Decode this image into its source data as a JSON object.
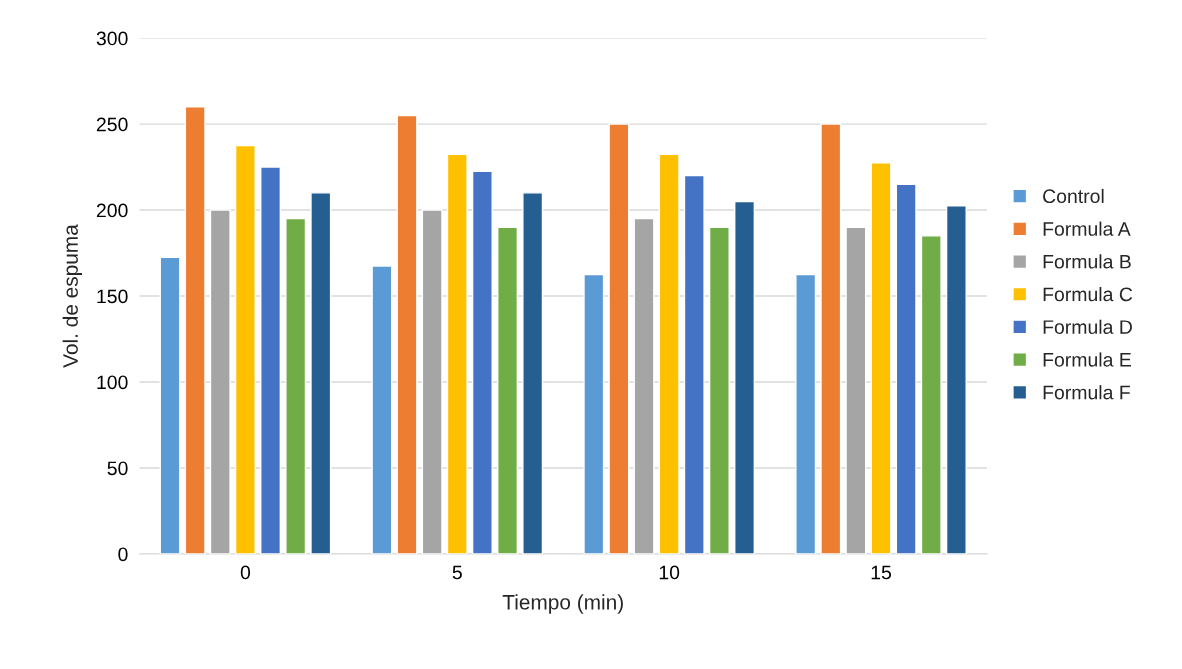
{
  "chart_data": {
    "type": "bar",
    "xlabel": "Tiempo (min)",
    "ylabel": "Vol. de espuma",
    "categories": [
      "0",
      "5",
      "10",
      "15"
    ],
    "series": [
      {
        "name": "Control",
        "color": "#5b9bd5",
        "values": [
          172.5,
          167.5,
          162.5,
          162.5
        ]
      },
      {
        "name": "Formula A",
        "color": "#ed7d31",
        "values": [
          260,
          255,
          250,
          250
        ]
      },
      {
        "name": "Formula B",
        "color": "#a5a5a5",
        "values": [
          200,
          200,
          195,
          190
        ]
      },
      {
        "name": "Formula C",
        "color": "#ffc000",
        "values": [
          237.5,
          232.5,
          232.5,
          227.5
        ]
      },
      {
        "name": "Formula D",
        "color": "#4472c4",
        "values": [
          225,
          222.5,
          220,
          215
        ]
      },
      {
        "name": "Formula E",
        "color": "#70ad47",
        "values": [
          195,
          190,
          190,
          185
        ]
      },
      {
        "name": "Formula F",
        "color": "#255e91",
        "values": [
          210,
          210,
          205,
          202.5
        ]
      }
    ],
    "ylim": [
      0,
      300
    ],
    "yticks": [
      0,
      50,
      100,
      150,
      200,
      250,
      300
    ],
    "grid": "y",
    "legend": "right"
  }
}
